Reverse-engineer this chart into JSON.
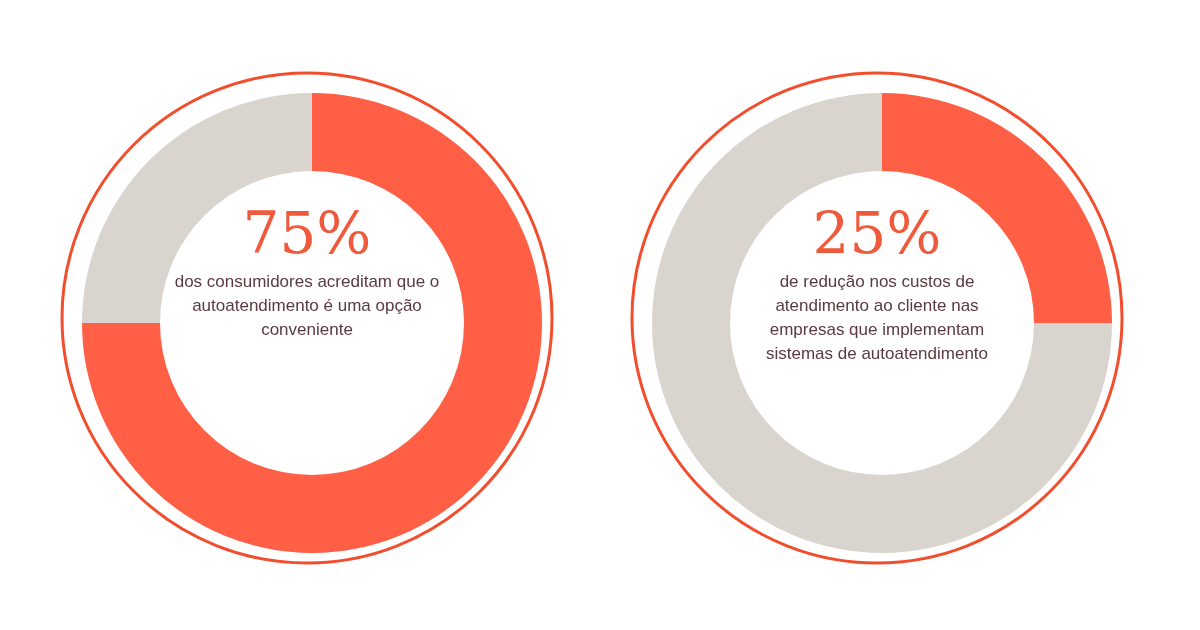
{
  "chart_data": [
    {
      "type": "donut",
      "categories": [
        null,
        null
      ],
      "values": [
        75,
        25
      ],
      "colors": [
        "#ff5f45",
        "#d9d4ce"
      ],
      "value_labels": [
        "75%",
        null
      ],
      "annotations": [
        "dos consumidores acreditam que o autoatendimento é uma opção conveniente"
      ]
    },
    {
      "type": "donut",
      "categories": [
        null,
        null
      ],
      "values": [
        25,
        75
      ],
      "colors": [
        "#ff5f45",
        "#d9d4ce"
      ],
      "value_labels": [
        "25%",
        null
      ],
      "annotations": [
        "de redução nos custos de atendimento ao cliente nas empresas que implementam sistemas de autoatendimento"
      ]
    }
  ]
}
